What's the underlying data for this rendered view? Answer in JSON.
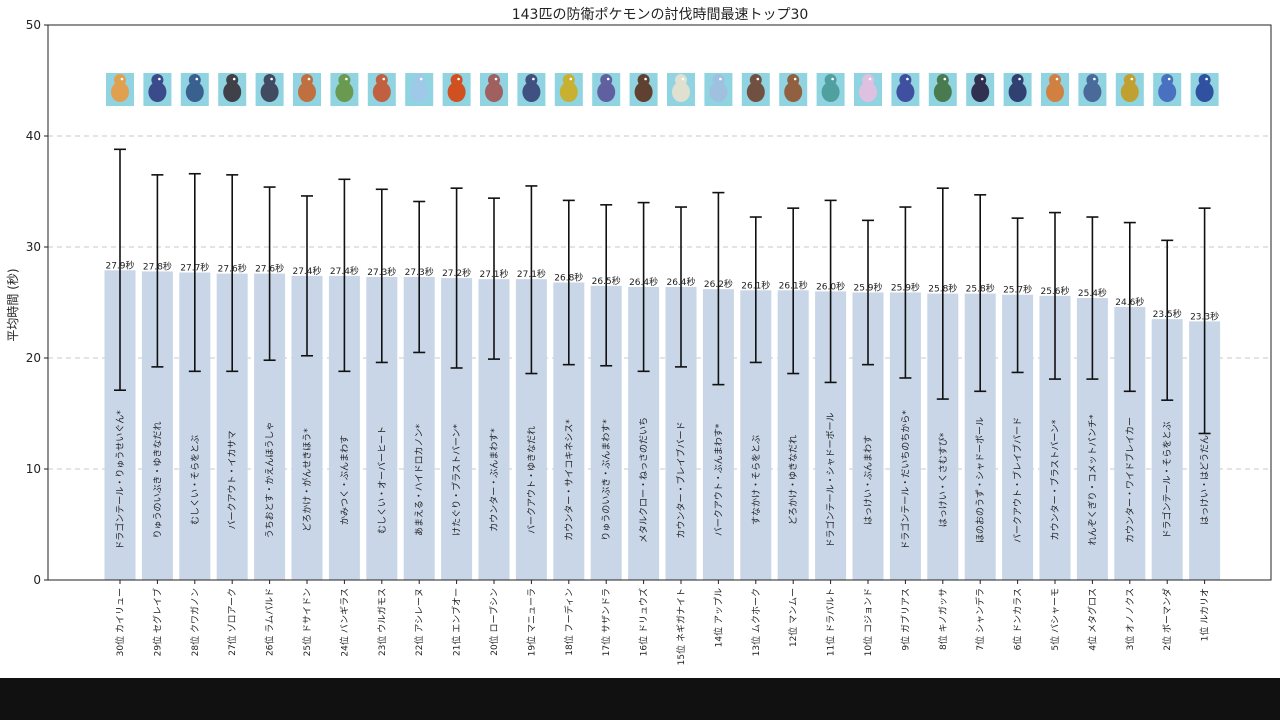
{
  "chart_data": {
    "type": "bar",
    "title": "143匹の防衛ポケモンの討伐時間最速トップ30",
    "xlabel": "",
    "ylabel": "平均時間 (秒)",
    "ylim": [
      0,
      50
    ],
    "yticks": [
      0,
      10,
      20,
      30,
      40,
      50
    ],
    "grid": true,
    "bar_color": "#c9d6e8",
    "categories": [
      "30位 カイリュー",
      "29位 セグレイブ",
      "28位 クワガノン",
      "27位 ゾロアーク",
      "26位 ラムパルド",
      "25位 ドサイドン",
      "24位 バンギラス",
      "23位 ウルガモス",
      "22位 アシレーヌ",
      "21位 エンブオー",
      "20位 ローブシン",
      "19位 マニューラ",
      "18位 フーディン",
      "17位 サザンドラ",
      "16位 ドリュウズ",
      "15位 ネギガナイト",
      "14位 アップル",
      "13位 ムクホーク",
      "12位 マンムー",
      "11位 ドラパルト",
      "10位 コジョンド",
      "9位 ガブリアス",
      "8位 キノガッサ",
      "7位 シャンデラ",
      "6位 ドンカラス",
      "5位 バシャーモ",
      "4位 メタグロス",
      "3位 オノノクス",
      "2位 ボーマンダ",
      "1位 ルカリオ"
    ],
    "values": [
      27.9,
      27.8,
      27.7,
      27.6,
      27.6,
      27.4,
      27.4,
      27.3,
      27.3,
      27.2,
      27.1,
      27.1,
      26.8,
      26.5,
      26.4,
      26.4,
      26.2,
      26.1,
      26.1,
      26.0,
      25.9,
      25.9,
      25.8,
      25.8,
      25.7,
      25.6,
      25.4,
      24.6,
      23.5,
      23.3
    ],
    "value_labels": [
      "27.9秒",
      "27.8秒",
      "27.7秒",
      "27.6秒",
      "27.6秒",
      "27.4秒",
      "27.4秒",
      "27.3秒",
      "27.3秒",
      "27.2秒",
      "27.1秒",
      "27.1秒",
      "26.8秒",
      "26.5秒",
      "26.4秒",
      "26.4秒",
      "26.2秒",
      "26.1秒",
      "26.1秒",
      "26.0秒",
      "25.9秒",
      "25.9秒",
      "25.8秒",
      "25.8秒",
      "25.7秒",
      "25.6秒",
      "25.4秒",
      "24.6秒",
      "23.5秒",
      "23.3秒"
    ],
    "error_low": [
      17.1,
      19.2,
      18.8,
      18.8,
      19.8,
      20.2,
      18.8,
      19.6,
      20.5,
      19.1,
      19.9,
      18.6,
      19.4,
      19.3,
      18.8,
      19.2,
      17.6,
      19.6,
      18.6,
      17.8,
      19.4,
      18.2,
      16.3,
      17.0,
      18.7,
      18.1,
      18.1,
      17.0,
      16.2,
      13.2
    ],
    "error_high": [
      38.8,
      36.5,
      36.6,
      36.5,
      35.4,
      34.6,
      36.1,
      35.2,
      34.1,
      35.3,
      34.4,
      35.5,
      34.2,
      33.8,
      34.0,
      33.6,
      34.9,
      32.7,
      33.5,
      34.2,
      32.4,
      33.6,
      35.3,
      34.7,
      32.6,
      33.1,
      32.7,
      32.2,
      30.6,
      33.5
    ],
    "moves": [
      "ドラゴンテール・りゅうせいぐん*",
      "りゅうのいぶき・ゆきなだれ",
      "むしくい・そらをとぶ",
      "バークアウト・イカサマ",
      "うちおとす・かえんほうしゃ",
      "どろかけ・がんせきほう*",
      "かみつく・ぶんまわす",
      "むしくい・オーバーヒート",
      "あまえる・ハイドロカノン*",
      "けたぐり・ブラストバーン*",
      "カウンター・ぶんまわす*",
      "バークアウト・ゆきなだれ",
      "カウンター・サイコキネシス*",
      "りゅうのいぶき・ぶんまわす*",
      "メタルクロー・ねっさのだいち",
      "カウンター・ブレイブバード",
      "バークアウト・ぶんまわす*",
      "すなかけ・そらをとぶ",
      "どろかけ・ゆきなだれ",
      "ドラゴンテール・シャドーボール",
      "はっけい・ぶんまわす",
      "ドラゴンテール・だいちのちから*",
      "はっけい・くさむすび*",
      "ほのおのうず・シャドーボール",
      "バークアウト・ブレイブバード",
      "カウンター・ブラストバーン*",
      "れんぞくぎり・コメットパンチ*",
      "カウンター・ワイドブレイカー",
      "ドラゴンテール・そらをとぶ",
      "はっけい・はどうだん"
    ],
    "sprite_colors": [
      "#e0a050",
      "#3a4a8a",
      "#3a6090",
      "#404048",
      "#404a60",
      "#c07040",
      "#6a9a50",
      "#c06040",
      "#a0c8e8",
      "#d05020",
      "#a06060",
      "#405080",
      "#c8b030",
      "#6060a0",
      "#604030",
      "#e0e0d0",
      "#a0c0e0",
      "#705040",
      "#906040",
      "#50a0a0",
      "#e0c0e0",
      "#4050a0",
      "#4a7a50",
      "#303050",
      "#304070",
      "#d08040",
      "#4a6a9a",
      "#c0a030",
      "#4a70c0",
      "#3050a0"
    ]
  }
}
